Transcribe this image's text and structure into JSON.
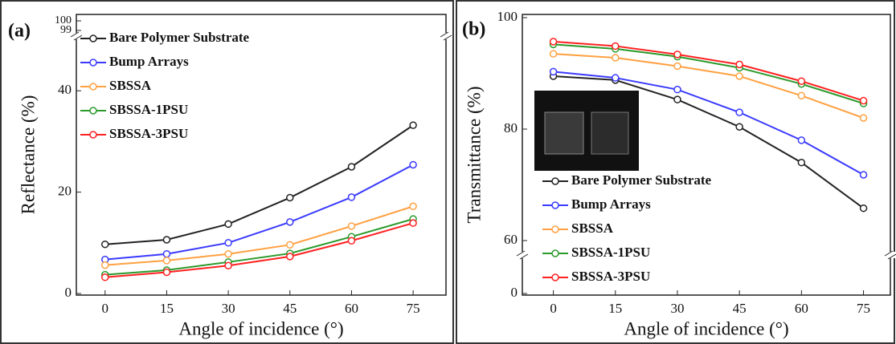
{
  "chart_data": [
    {
      "type": "line",
      "panel_label": "(a)",
      "xlabel": "Angle of incidence (°)",
      "ylabel": "Reflectance (%)",
      "x": [
        0,
        15,
        30,
        45,
        60,
        75
      ],
      "xlim": [
        -7,
        83
      ],
      "xticks": [
        0,
        15,
        30,
        45,
        60,
        75
      ],
      "ylim": [
        0,
        50
      ],
      "yticks": [
        0,
        20,
        40
      ],
      "upper_yticks": [
        99,
        100
      ],
      "legend": "upper left",
      "series": [
        {
          "name": "Bare Polymer Substrate",
          "color": "#222222",
          "values": [
            9.7,
            10.6,
            13.7,
            18.9,
            25,
            33.2
          ]
        },
        {
          "name": "Bump Arrays",
          "color": "#3a3aff",
          "values": [
            6.7,
            7.8,
            10,
            14.1,
            19,
            25.4
          ]
        },
        {
          "name": "SBSSA",
          "color": "#ffa040",
          "values": [
            5.6,
            6.5,
            7.8,
            9.6,
            13.3,
            17.2
          ]
        },
        {
          "name": "SBSSA-1PSU",
          "color": "#2a9a2a",
          "values": [
            3.7,
            4.6,
            6.2,
            7.9,
            11.2,
            14.7
          ]
        },
        {
          "name": "SBSSA-3PSU",
          "color": "#ff2020",
          "values": [
            3.2,
            4.2,
            5.5,
            7.3,
            10.4,
            13.9
          ]
        }
      ]
    },
    {
      "type": "line",
      "panel_label": "(b)",
      "xlabel": "Angle of incidence (°)",
      "ylabel": "Transmittance (%)",
      "x": [
        0,
        15,
        30,
        45,
        60,
        75
      ],
      "xlim": [
        -7.5,
        81.5
      ],
      "xticks": [
        0,
        15,
        30,
        45,
        60,
        75
      ],
      "ylim": [
        60,
        100
      ],
      "yticks": [
        60,
        80,
        100
      ],
      "lower_yticks": [
        0
      ],
      "legend": "lower left",
      "series": [
        {
          "name": "Bare Polymer Substrate",
          "color": "#222222",
          "values": [
            89.5,
            88.8,
            85.3,
            80.4,
            74,
            65.8
          ]
        },
        {
          "name": "Bump Arrays",
          "color": "#3a3aff",
          "values": [
            90.3,
            89.2,
            87.1,
            83,
            78,
            71.8
          ]
        },
        {
          "name": "SBSSA",
          "color": "#ffa040",
          "values": [
            93.5,
            92.8,
            91.3,
            89.5,
            86,
            82
          ]
        },
        {
          "name": "SBSSA-1PSU",
          "color": "#2a9a2a",
          "values": [
            95.2,
            94.4,
            93,
            91,
            88.1,
            84.6
          ]
        },
        {
          "name": "SBSSA-3PSU",
          "color": "#ff2020",
          "values": [
            95.7,
            94.9,
            93.4,
            91.6,
            88.6,
            85.1
          ]
        }
      ]
    }
  ]
}
